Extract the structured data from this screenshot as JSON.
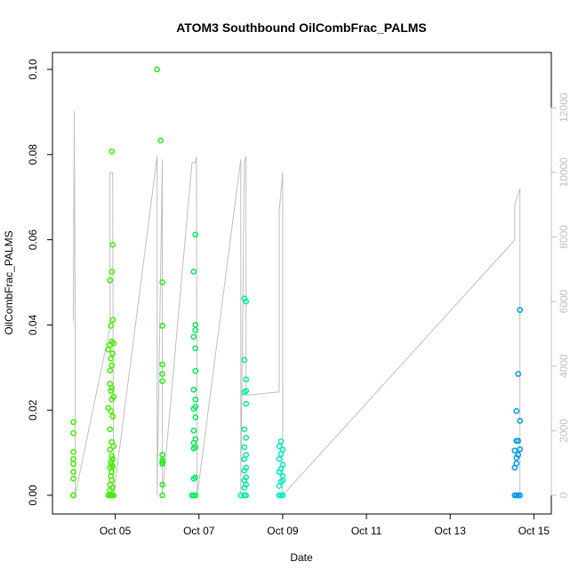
{
  "chart_data": {
    "type": "scatter",
    "title": "ATOM3 Southbound OilCombFrac_PALMS",
    "xlabel": "Date",
    "ylabel": "OilCombFrac_PALMS",
    "xlim": [
      "2017-10-03T12:00",
      "2017-10-15T10:00"
    ],
    "ylim": [
      0,
      0.1
    ],
    "y2lim": [
      0,
      12000
    ],
    "x_tick_labels": [
      "Oct 05",
      "Oct 07",
      "Oct 09",
      "Oct 11",
      "Oct 13",
      "Oct 15"
    ],
    "x_ticks": [
      "2017-10-05",
      "2017-10-07",
      "2017-10-09",
      "2017-10-11",
      "2017-10-13",
      "2017-10-15"
    ],
    "y_ticks": [
      0.0,
      0.02,
      0.04,
      0.06,
      0.08,
      0.1
    ],
    "y_tick_labels": [
      "0.00",
      "0.02",
      "0.04",
      "0.06",
      "0.08",
      "0.10"
    ],
    "y2_ticks": [
      0,
      2000,
      4000,
      6000,
      8000,
      10000,
      12000
    ],
    "y2_tick_labels": [
      "0",
      "2000",
      "4000",
      "6000",
      "8000",
      "10000",
      "12000"
    ],
    "colors": {
      "altitude_line": "#bfbfbf",
      "flight1": "#44ee00",
      "flight2": "#22ee22",
      "flight3": "#00ee55",
      "flight4": "#00ee99",
      "flight5": "#00eebb",
      "flight6": "#0099ee"
    },
    "series": [
      {
        "color": "#44ee00",
        "x": [
          "2017-10-04T00:00",
          "2017-10-04T00:00",
          "2017-10-04T00:00",
          "2017-10-04T00:00",
          "2017-10-04T00:00",
          "2017-10-04T00:00",
          "2017-10-04T00:00",
          "2017-10-04T00:00",
          "2017-10-04T00:00"
        ],
        "y": [
          0.0,
          0.0039,
          0.0055,
          0.0074,
          0.0085,
          0.0102,
          0.0146,
          0.0172,
          0.0
        ]
      },
      {
        "color": "#44ee00",
        "x": [
          "2017-10-04T20:00",
          "2017-10-04T21:00",
          "2017-10-04T21:30",
          "2017-10-04T22:00",
          "2017-10-04T22:30",
          "2017-10-04T23:00",
          "2017-10-04T20:00",
          "2017-10-04T21:00",
          "2017-10-04T22:00",
          "2017-10-04T23:00",
          "2017-10-04T21:00",
          "2017-10-04T22:00",
          "2017-10-04T22:30",
          "2017-10-04T21:30",
          "2017-10-04T22:00",
          "2017-10-04T22:30",
          "2017-10-04T21:00",
          "2017-10-04T22:00",
          "2017-10-04T21:30",
          "2017-10-04T22:00",
          "2017-10-04T21:00",
          "2017-10-04T22:30",
          "2017-10-04T21:00",
          "2017-10-04T21:30",
          "2017-10-04T22:00",
          "2017-10-04T21:30",
          "2017-10-04T22:30",
          "2017-10-04T21:00",
          "2017-10-04T22:00",
          "2017-10-04T23:00",
          "2017-10-04T21:00",
          "2017-10-04T22:00",
          "2017-10-04T21:30",
          "2017-10-04T22:30",
          "2017-10-04T20:00",
          "2017-10-04T21:00",
          "2017-10-04T22:00",
          "2017-10-04T23:00",
          "2017-10-04T21:30",
          "2017-10-04T22:30",
          "2017-10-04T21:00",
          "2017-10-04T22:00",
          "2017-10-04T22:30"
        ],
        "y": [
          0.0,
          0.0,
          0.0,
          0.0,
          0.0,
          0.0,
          0.0205,
          0.0155,
          0.0125,
          0.0115,
          0.0107,
          0.0092,
          0.0085,
          0.0078,
          0.0072,
          0.0067,
          0.0065,
          0.0055,
          0.0045,
          0.0035,
          0.0025,
          0.0018,
          0.0012,
          0.0245,
          0.0225,
          0.0198,
          0.0185,
          0.0262,
          0.0252,
          0.0231,
          0.0293,
          0.0305,
          0.0321,
          0.0333,
          0.0342,
          0.0353,
          0.0361,
          0.0357,
          0.0398,
          0.0412,
          0.0505,
          0.0525,
          0.0588
        ]
      },
      {
        "color": "#44ee00",
        "x": [
          "2017-10-04T22:00"
        ],
        "y": [
          0.0807
        ]
      },
      {
        "color": "#22ee22",
        "x": [
          "2017-10-06T00:00",
          "2017-10-06T02:00",
          "2017-10-06T03:00",
          "2017-10-06T03:00",
          "2017-10-06T03:00",
          "2017-10-06T03:00",
          "2017-10-06T03:00",
          "2017-10-06T03:00",
          "2017-10-06T03:00",
          "2017-10-06T03:00",
          "2017-10-06T03:00",
          "2017-10-06T03:00",
          "2017-10-06T03:00"
        ],
        "y": [
          0.1,
          0.0833,
          0.0398,
          0.05,
          0.0307,
          0.0285,
          0.0268,
          0.0095,
          0.0082,
          0.0078,
          0.0074,
          0.0025,
          0.0
        ]
      },
      {
        "color": "#00ee55",
        "x": [
          "2017-10-06T20:00",
          "2017-10-06T21:00",
          "2017-10-06T22:00",
          "2017-10-06T21:00",
          "2017-10-06T22:00",
          "2017-10-06T21:00",
          "2017-10-06T22:00",
          "2017-10-06T21:00",
          "2017-10-06T22:00",
          "2017-10-06T21:00",
          "2017-10-06T22:00",
          "2017-10-06T21:00",
          "2017-10-06T22:00",
          "2017-10-06T22:00",
          "2017-10-06T21:00",
          "2017-10-06T22:00",
          "2017-10-06T22:00",
          "2017-10-06T21:00",
          "2017-10-06T22:00",
          "2017-10-06T22:00",
          "2017-10-06T21:00",
          "2017-10-06T22:00"
        ],
        "y": [
          0.0,
          0.0,
          0.0,
          0.0039,
          0.0042,
          0.011,
          0.0113,
          0.0123,
          0.0132,
          0.0152,
          0.0183,
          0.0203,
          0.0208,
          0.0225,
          0.0248,
          0.0292,
          0.0345,
          0.0372,
          0.0388,
          0.04,
          0.0525,
          0.0612
        ]
      },
      {
        "color": "#00ee99",
        "x": [
          "2017-10-08T00:00",
          "2017-10-08T02:00",
          "2017-10-08T03:00",
          "2017-10-08T02:00",
          "2017-10-08T03:00",
          "2017-10-08T02:00",
          "2017-10-08T03:00",
          "2017-10-08T02:00",
          "2017-10-08T03:00",
          "2017-10-08T02:00",
          "2017-10-08T03:00",
          "2017-10-08T02:00",
          "2017-10-08T03:00",
          "2017-10-08T02:00",
          "2017-10-08T03:00",
          "2017-10-08T02:00",
          "2017-10-08T03:00",
          "2017-10-08T02:00",
          "2017-10-08T03:00",
          "2017-10-08T02:00",
          "2017-10-08T03:00"
        ],
        "y": [
          0.0,
          0.0,
          0.0,
          0.0018,
          0.0025,
          0.0035,
          0.0042,
          0.0058,
          0.0065,
          0.0085,
          0.0095,
          0.0113,
          0.0135,
          0.0155,
          0.0215,
          0.0242,
          0.0272,
          0.0318,
          0.0455,
          0.0462,
          0.0245
        ]
      },
      {
        "color": "#00eebb",
        "x": [
          "2017-10-08T22:00",
          "2017-10-08T23:00",
          "2017-10-09T00:00",
          "2017-10-08T22:00",
          "2017-10-08T23:00",
          "2017-10-09T00:00",
          "2017-10-08T22:00",
          "2017-10-08T23:00",
          "2017-10-09T00:00",
          "2017-10-08T22:00",
          "2017-10-08T23:00",
          "2017-10-09T00:00",
          "2017-10-08T22:00",
          "2017-10-08T23:00",
          "2017-10-09T00:00"
        ],
        "y": [
          0.0,
          0.0,
          0.0,
          0.0022,
          0.0032,
          0.0045,
          0.0055,
          0.0062,
          0.0072,
          0.0085,
          0.0097,
          0.0107,
          0.0115,
          0.0127,
          0.0035
        ]
      },
      {
        "color": "#0099ee",
        "x": [
          "2017-10-14T13:00",
          "2017-10-14T14:00",
          "2017-10-14T15:00",
          "2017-10-14T16:00",
          "2017-10-14T13:00",
          "2017-10-14T14:00",
          "2017-10-14T15:00",
          "2017-10-14T16:00",
          "2017-10-14T13:00",
          "2017-10-14T14:00",
          "2017-10-14T15:00",
          "2017-10-14T16:00",
          "2017-10-14T14:00",
          "2017-10-14T15:00",
          "2017-10-14T16:00",
          "2017-10-14T14:00"
        ],
        "y": [
          0.0,
          0.0,
          0.0,
          0.0,
          0.0065,
          0.0075,
          0.0095,
          0.0108,
          0.0105,
          0.0128,
          0.0128,
          0.0175,
          0.0198,
          0.0285,
          0.0435,
          0.0088
        ]
      }
    ],
    "altitude_line": {
      "color": "#bfbfbf",
      "axis": "right",
      "x": [
        "2017-10-04T00:00",
        "2017-10-04T00:30",
        "2017-10-04T01:00",
        "2017-10-04T01:00",
        "2017-10-04T21:00",
        "2017-10-04T21:00",
        "2017-10-04T21:30",
        "2017-10-04T22:00",
        "2017-10-04T22:30",
        "2017-10-04T23:00",
        "2017-10-04T23:00",
        "2017-10-06T00:00",
        "2017-10-06T00:00",
        "2017-10-06T03:00",
        "2017-10-06T03:00",
        "2017-10-06T03:00",
        "2017-10-06T20:00",
        "2017-10-06T22:00",
        "2017-10-06T22:30",
        "2017-10-06T23:00",
        "2017-10-06T23:00",
        "2017-10-08T00:00",
        "2017-10-08T00:00",
        "2017-10-08T02:00",
        "2017-10-08T03:00",
        "2017-10-08T03:00",
        "2017-10-08T22:00",
        "2017-10-08T22:00",
        "2017-10-09T00:00",
        "2017-10-09T00:00",
        "2017-10-14T13:00",
        "2017-10-14T13:00",
        "2017-10-14T16:00",
        "2017-10-14T16:00"
      ],
      "y": [
        5400,
        11900,
        5400,
        0,
        5200,
        10000,
        10000,
        10000,
        10000,
        0,
        0,
        10500,
        0,
        10400,
        0,
        0,
        10300,
        10300,
        10500,
        0,
        0,
        10400,
        0,
        10300,
        10500,
        3100,
        3200,
        8800,
        10000,
        0,
        7900,
        9000,
        9500,
        0
      ]
    }
  }
}
